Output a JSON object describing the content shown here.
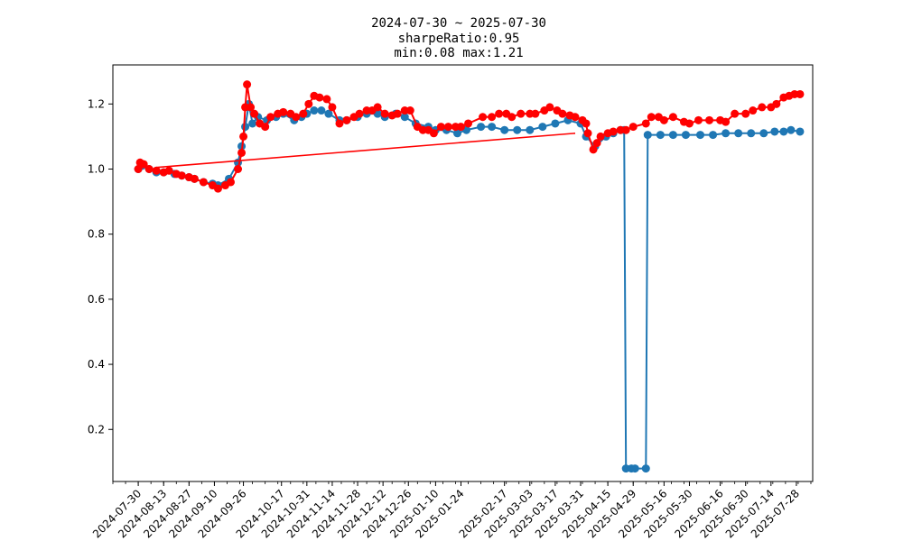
{
  "chart_data": {
    "type": "line",
    "title_lines": [
      "2024-07-30 ~ 2025-07-30",
      "sharpeRatio:0.95",
      "min:0.08 max:1.21"
    ],
    "xlabel": "",
    "ylabel": "",
    "ylim": [
      0.04,
      1.32
    ],
    "yticks": [
      0.2,
      0.4,
      0.6,
      0.8,
      1.0,
      1.2
    ],
    "xlim": [
      "2024-07-16",
      "2025-08-06"
    ],
    "xticks": [
      "2024-07-30",
      "2024-08-13",
      "2024-08-27",
      "2024-09-10",
      "2024-09-26",
      "2024-10-17",
      "2024-10-31",
      "2024-11-14",
      "2024-11-28",
      "2024-12-12",
      "2024-12-26",
      "2025-01-10",
      "2025-01-24",
      "2025-02-17",
      "2025-03-03",
      "2025-03-17",
      "2025-03-31",
      "2025-04-15",
      "2025-04-29",
      "2025-05-16",
      "2025-05-30",
      "2025-06-16",
      "2025-06-30",
      "2025-07-14",
      "2025-07-28"
    ],
    "grid": false,
    "legend": "none",
    "series": [
      {
        "color": "#1f77b4",
        "points": [
          [
            "2024-07-30",
            1.0
          ],
          [
            "2024-08-01",
            1.01
          ],
          [
            "2024-08-05",
            1.0
          ],
          [
            "2024-08-09",
            0.99
          ],
          [
            "2024-08-13",
            0.99
          ],
          [
            "2024-08-19",
            0.985
          ],
          [
            "2024-08-23",
            0.98
          ],
          [
            "2024-08-27",
            0.975
          ],
          [
            "2024-08-30",
            0.97
          ],
          [
            "2024-09-04",
            0.96
          ],
          [
            "2024-09-09",
            0.955
          ],
          [
            "2024-09-12",
            0.95
          ],
          [
            "2024-09-18",
            0.97
          ],
          [
            "2024-09-23",
            1.02
          ],
          [
            "2024-09-25",
            1.07
          ],
          [
            "2024-09-27",
            1.13
          ],
          [
            "2024-09-29",
            1.2
          ],
          [
            "2024-10-01",
            1.14
          ],
          [
            "2024-10-04",
            1.16
          ],
          [
            "2024-10-09",
            1.15
          ],
          [
            "2024-10-14",
            1.16
          ],
          [
            "2024-10-18",
            1.17
          ],
          [
            "2024-10-24",
            1.15
          ],
          [
            "2024-10-28",
            1.16
          ],
          [
            "2024-10-31",
            1.17
          ],
          [
            "2024-11-04",
            1.18
          ],
          [
            "2024-11-08",
            1.18
          ],
          [
            "2024-11-12",
            1.17
          ],
          [
            "2024-11-18",
            1.15
          ],
          [
            "2024-11-22",
            1.15
          ],
          [
            "2024-11-28",
            1.16
          ],
          [
            "2024-12-03",
            1.17
          ],
          [
            "2024-12-09",
            1.17
          ],
          [
            "2024-12-13",
            1.16
          ],
          [
            "2024-12-19",
            1.17
          ],
          [
            "2024-12-24",
            1.16
          ],
          [
            "2024-12-30",
            1.14
          ],
          [
            "2025-01-06",
            1.13
          ],
          [
            "2025-01-10",
            1.12
          ],
          [
            "2025-01-16",
            1.12
          ],
          [
            "2025-01-22",
            1.11
          ],
          [
            "2025-01-27",
            1.12
          ],
          [
            "2025-02-04",
            1.13
          ],
          [
            "2025-02-10",
            1.13
          ],
          [
            "2025-02-17",
            1.12
          ],
          [
            "2025-02-24",
            1.12
          ],
          [
            "2025-03-03",
            1.12
          ],
          [
            "2025-03-10",
            1.13
          ],
          [
            "2025-03-17",
            1.14
          ],
          [
            "2025-03-24",
            1.15
          ],
          [
            "2025-03-31",
            1.14
          ],
          [
            "2025-04-03",
            1.1
          ],
          [
            "2025-04-08",
            1.07
          ],
          [
            "2025-04-14",
            1.1
          ],
          [
            "2025-04-18",
            1.11
          ],
          [
            "2025-04-22",
            1.12
          ],
          [
            "2025-04-24",
            1.12
          ],
          [
            "2025-04-25",
            0.08
          ],
          [
            "2025-04-28",
            0.08
          ],
          [
            "2025-04-30",
            0.08
          ],
          [
            "2025-05-06",
            0.08
          ],
          [
            "2025-05-07",
            1.105
          ],
          [
            "2025-05-14",
            1.105
          ],
          [
            "2025-05-21",
            1.105
          ],
          [
            "2025-05-28",
            1.105
          ],
          [
            "2025-06-05",
            1.105
          ],
          [
            "2025-06-12",
            1.105
          ],
          [
            "2025-06-19",
            1.11
          ],
          [
            "2025-06-26",
            1.11
          ],
          [
            "2025-07-03",
            1.11
          ],
          [
            "2025-07-10",
            1.11
          ],
          [
            "2025-07-16",
            1.115
          ],
          [
            "2025-07-21",
            1.115
          ],
          [
            "2025-07-25",
            1.12
          ],
          [
            "2025-07-30",
            1.115
          ]
        ]
      },
      {
        "color": "#ff0000",
        "points": [
          [
            "2024-07-30",
            1.0
          ],
          [
            "2024-07-31",
            1.02
          ],
          [
            "2024-08-02",
            1.015
          ],
          [
            "2024-08-05",
            1.0
          ],
          [
            "2024-08-09",
            0.995
          ],
          [
            "2024-08-13",
            0.99
          ],
          [
            "2024-08-16",
            0.995
          ],
          [
            "2024-08-20",
            0.985
          ],
          [
            "2024-08-23",
            0.98
          ],
          [
            "2024-08-27",
            0.975
          ],
          [
            "2024-08-30",
            0.97
          ],
          [
            "2024-09-04",
            0.96
          ],
          [
            "2024-09-09",
            0.95
          ],
          [
            "2024-09-12",
            0.94
          ],
          [
            "2024-09-16",
            0.95
          ],
          [
            "2024-09-19",
            0.96
          ],
          [
            "2024-09-23",
            1.0
          ],
          [
            "2024-09-25",
            1.05
          ],
          [
            "2024-09-26",
            1.1
          ],
          [
            "2024-09-27",
            1.19
          ],
          [
            "2024-09-28",
            1.26
          ],
          [
            "2024-09-30",
            1.19
          ],
          [
            "2024-10-02",
            1.17
          ],
          [
            "2024-10-05",
            1.14
          ],
          [
            "2024-10-08",
            1.13
          ],
          [
            "2024-10-11",
            1.16
          ],
          [
            "2024-10-15",
            1.17
          ],
          [
            "2024-10-18",
            1.175
          ],
          [
            "2024-10-22",
            1.17
          ],
          [
            "2024-10-25",
            1.16
          ],
          [
            "2024-10-29",
            1.17
          ],
          [
            "2024-11-01",
            1.2
          ],
          [
            "2024-11-04",
            1.225
          ],
          [
            "2024-11-07",
            1.22
          ],
          [
            "2024-11-11",
            1.215
          ],
          [
            "2024-11-14",
            1.19
          ],
          [
            "2024-11-18",
            1.14
          ],
          [
            "2024-11-22",
            1.15
          ],
          [
            "2024-11-26",
            1.16
          ],
          [
            "2024-11-29",
            1.17
          ],
          [
            "2024-12-03",
            1.18
          ],
          [
            "2024-12-06",
            1.18
          ],
          [
            "2024-12-09",
            1.19
          ],
          [
            "2024-12-13",
            1.17
          ],
          [
            "2024-12-17",
            1.165
          ],
          [
            "2024-12-20",
            1.17
          ],
          [
            "2024-12-24",
            1.18
          ],
          [
            "2024-12-27",
            1.18
          ],
          [
            "2024-12-31",
            1.13
          ],
          [
            "2025-01-03",
            1.12
          ],
          [
            "2025-01-06",
            1.12
          ],
          [
            "2025-01-09",
            1.11
          ],
          [
            "2025-01-13",
            1.13
          ],
          [
            "2025-01-17",
            1.13
          ],
          [
            "2025-01-21",
            1.13
          ],
          [
            "2025-01-24",
            1.13
          ],
          [
            "2025-01-28",
            1.14
          ],
          [
            "2025-02-05",
            1.16
          ],
          [
            "2025-02-10",
            1.16
          ],
          [
            "2025-02-14",
            1.17
          ],
          [
            "2025-02-18",
            1.17
          ],
          [
            "2025-02-21",
            1.16
          ],
          [
            "2025-02-26",
            1.17
          ],
          [
            "2025-03-03",
            1.17
          ],
          [
            "2025-03-06",
            1.17
          ],
          [
            "2025-03-11",
            1.18
          ],
          [
            "2025-03-14",
            1.19
          ],
          [
            "2025-03-18",
            1.18
          ],
          [
            "2025-03-21",
            1.17
          ],
          [
            "2025-03-25",
            1.165
          ],
          [
            "2025-03-28",
            1.16
          ],
          [
            "2025-04-01",
            1.15
          ],
          [
            "2025-04-03",
            1.14
          ],
          [
            "2025-04-04",
            1.11
          ],
          [
            "2025-04-07",
            1.06
          ],
          [
            "2025-04-09",
            1.08
          ],
          [
            "2025-04-11",
            1.1
          ],
          [
            "2025-04-15",
            1.11
          ],
          [
            "2025-04-18",
            1.115
          ],
          [
            "2025-04-22",
            1.12
          ],
          [
            "2025-04-25",
            1.12
          ],
          [
            "2025-04-29",
            1.13
          ],
          [
            "2025-05-06",
            1.14
          ],
          [
            "2025-05-09",
            1.16
          ],
          [
            "2025-05-13",
            1.16
          ],
          [
            "2025-05-16",
            1.15
          ],
          [
            "2025-05-21",
            1.16
          ],
          [
            "2025-05-27",
            1.145
          ],
          [
            "2025-05-30",
            1.14
          ],
          [
            "2025-06-04",
            1.15
          ],
          [
            "2025-06-10",
            1.15
          ],
          [
            "2025-06-16",
            1.15
          ],
          [
            "2025-06-19",
            1.145
          ],
          [
            "2025-06-24",
            1.17
          ],
          [
            "2025-06-30",
            1.17
          ],
          [
            "2025-07-04",
            1.18
          ],
          [
            "2025-07-09",
            1.19
          ],
          [
            "2025-07-14",
            1.19
          ],
          [
            "2025-07-17",
            1.2
          ],
          [
            "2025-07-21",
            1.22
          ],
          [
            "2025-07-24",
            1.225
          ],
          [
            "2025-07-27",
            1.23
          ],
          [
            "2025-07-30",
            1.23
          ]
        ],
        "connector": [
          [
            "2024-08-09",
            1.005
          ],
          [
            "2025-03-28",
            1.11
          ]
        ]
      }
    ]
  }
}
